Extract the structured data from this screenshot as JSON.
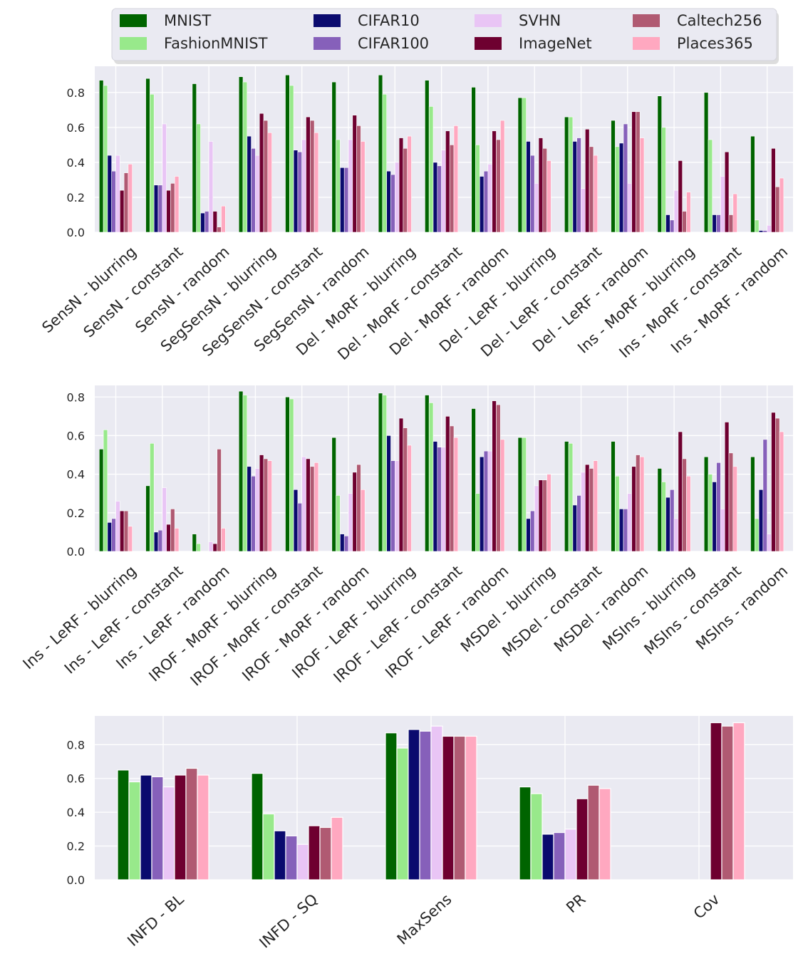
{
  "series": [
    {
      "name": "MNIST",
      "color": "#006400"
    },
    {
      "name": "FashionMNIST",
      "color": "#98E98B"
    },
    {
      "name": "CIFAR10",
      "color": "#0A0A6E"
    },
    {
      "name": "CIFAR100",
      "color": "#8660BA"
    },
    {
      "name": "SVHN",
      "color": "#E9C5F5"
    },
    {
      "name": "ImageNet",
      "color": "#6E0030"
    },
    {
      "name": "Caltech256",
      "color": "#B05A72"
    },
    {
      "name": "Places365",
      "color": "#FFA8C0"
    }
  ],
  "chart_data": [
    {
      "type": "bar",
      "title": "",
      "xlabel": "",
      "ylabel": "",
      "ylim": [
        0,
        0.95
      ],
      "yticks": [
        0.0,
        0.2,
        0.4,
        0.6,
        0.8
      ],
      "categories": [
        "SensN - blurring",
        "SensN - constant",
        "SensN - random",
        "SegSensN - blurring",
        "SegSensN - constant",
        "SegSensN - random",
        "Del - MoRF - blurring",
        "Del - MoRF - constant",
        "Del - MoRF - random",
        "Del - LeRF - blurring",
        "Del - LeRF - constant",
        "Del - LeRF - random",
        "Ins - MoRF - blurring",
        "Ins - MoRF - constant",
        "Ins - MoRF - random"
      ],
      "series": [
        {
          "name": "MNIST",
          "values": [
            0.87,
            0.88,
            0.85,
            0.89,
            0.9,
            0.86,
            0.9,
            0.87,
            0.83,
            0.77,
            0.66,
            0.64,
            0.78,
            0.8,
            0.55
          ]
        },
        {
          "name": "FashionMNIST",
          "values": [
            0.84,
            0.79,
            0.62,
            0.86,
            0.84,
            0.53,
            0.79,
            0.72,
            0.5,
            0.77,
            0.66,
            0.49,
            0.6,
            0.53,
            0.07
          ]
        },
        {
          "name": "CIFAR10",
          "values": [
            0.44,
            0.27,
            0.11,
            0.55,
            0.47,
            0.37,
            0.35,
            0.4,
            0.32,
            0.52,
            0.52,
            0.51,
            0.1,
            0.1,
            0.01
          ]
        },
        {
          "name": "CIFAR100",
          "values": [
            0.35,
            0.27,
            0.12,
            0.48,
            0.46,
            0.37,
            0.33,
            0.38,
            0.35,
            0.44,
            0.54,
            0.62,
            0.07,
            0.1,
            0.01
          ]
        },
        {
          "name": "SVHN",
          "values": [
            0.44,
            0.62,
            0.52,
            0.44,
            0.53,
            0.53,
            0.4,
            0.47,
            0.39,
            0.28,
            0.25,
            0.28,
            0.24,
            0.32,
            0.04
          ]
        },
        {
          "name": "ImageNet",
          "values": [
            0.24,
            0.24,
            0.12,
            0.68,
            0.66,
            0.67,
            0.54,
            0.58,
            0.58,
            0.54,
            0.59,
            0.69,
            0.41,
            0.46,
            0.48
          ]
        },
        {
          "name": "Caltech256",
          "values": [
            0.34,
            0.28,
            0.03,
            0.64,
            0.64,
            0.61,
            0.48,
            0.5,
            0.53,
            0.48,
            0.49,
            0.69,
            0.12,
            0.1,
            0.26
          ]
        },
        {
          "name": "Places365",
          "values": [
            0.39,
            0.32,
            0.15,
            0.57,
            0.57,
            0.52,
            0.55,
            0.61,
            0.64,
            0.41,
            0.44,
            0.54,
            0.23,
            0.22,
            0.31
          ]
        }
      ]
    },
    {
      "type": "bar",
      "title": "",
      "xlabel": "",
      "ylabel": "",
      "ylim": [
        0,
        0.86
      ],
      "yticks": [
        0.0,
        0.2,
        0.4,
        0.6,
        0.8
      ],
      "categories": [
        "Ins - LeRF - blurring",
        "Ins - LeRF - constant",
        "Ins - LeRF - random",
        "IROF - MoRF - blurring",
        "IROF - MoRF - constant",
        "IROF - MoRF - random",
        "IROF - LeRF - blurring",
        "IROF - LeRF - constant",
        "IROF - LeRF - random",
        "MSDel - blurring",
        "MSDel - constant",
        "MSDel - random",
        "MSIns - blurring",
        "MSIns - constant",
        "MSIns - random"
      ],
      "series": [
        {
          "name": "MNIST",
          "values": [
            0.53,
            0.34,
            0.09,
            0.83,
            0.8,
            0.59,
            0.82,
            0.81,
            0.74,
            0.59,
            0.57,
            0.57,
            0.43,
            0.49,
            0.49
          ]
        },
        {
          "name": "FashionMNIST",
          "values": [
            0.63,
            0.56,
            0.04,
            0.81,
            0.79,
            0.29,
            0.81,
            0.77,
            0.3,
            0.59,
            0.56,
            0.39,
            0.36,
            0.4,
            0.17
          ]
        },
        {
          "name": "CIFAR10",
          "values": [
            0.15,
            0.1,
            0.0,
            0.44,
            0.32,
            0.09,
            0.6,
            0.57,
            0.49,
            0.17,
            0.24,
            0.22,
            0.28,
            0.36,
            0.32
          ]
        },
        {
          "name": "CIFAR100",
          "values": [
            0.17,
            0.11,
            0.0,
            0.39,
            0.25,
            0.08,
            0.47,
            0.54,
            0.52,
            0.21,
            0.29,
            0.22,
            0.32,
            0.46,
            0.58
          ]
        },
        {
          "name": "SVHN",
          "values": [
            0.26,
            0.33,
            0.05,
            0.43,
            0.49,
            0.3,
            0.47,
            0.54,
            0.52,
            0.34,
            0.41,
            0.3,
            0.17,
            0.22,
            0.09
          ]
        },
        {
          "name": "ImageNet",
          "values": [
            0.21,
            0.14,
            0.04,
            0.5,
            0.48,
            0.41,
            0.69,
            0.7,
            0.78,
            0.37,
            0.45,
            0.44,
            0.62,
            0.67,
            0.72
          ]
        },
        {
          "name": "Caltech256",
          "values": [
            0.21,
            0.22,
            0.53,
            0.48,
            0.44,
            0.45,
            0.64,
            0.65,
            0.76,
            0.37,
            0.43,
            0.5,
            0.48,
            0.51,
            0.69
          ]
        },
        {
          "name": "Places365",
          "values": [
            0.13,
            0.12,
            0.12,
            0.47,
            0.46,
            0.32,
            0.55,
            0.59,
            0.58,
            0.4,
            0.47,
            0.49,
            0.39,
            0.44,
            0.62
          ]
        }
      ]
    },
    {
      "type": "bar",
      "title": "",
      "xlabel": "",
      "ylabel": "",
      "ylim": [
        0,
        0.97
      ],
      "yticks": [
        0.0,
        0.2,
        0.4,
        0.6,
        0.8
      ],
      "categories": [
        "INFD - BL",
        "INFD - SQ",
        "MaxSens",
        "PR",
        "Cov"
      ],
      "series": [
        {
          "name": "MNIST",
          "values": [
            0.65,
            0.63,
            0.87,
            0.55,
            null
          ]
        },
        {
          "name": "FashionMNIST",
          "values": [
            0.58,
            0.39,
            0.78,
            0.51,
            null
          ]
        },
        {
          "name": "CIFAR10",
          "values": [
            0.62,
            0.29,
            0.89,
            0.27,
            null
          ]
        },
        {
          "name": "CIFAR100",
          "values": [
            0.61,
            0.26,
            0.88,
            0.28,
            null
          ]
        },
        {
          "name": "SVHN",
          "values": [
            0.55,
            0.21,
            0.91,
            0.3,
            null
          ]
        },
        {
          "name": "ImageNet",
          "values": [
            0.62,
            0.32,
            0.85,
            0.48,
            0.93
          ]
        },
        {
          "name": "Caltech256",
          "values": [
            0.66,
            0.31,
            0.85,
            0.56,
            0.91
          ]
        },
        {
          "name": "Places365",
          "values": [
            0.62,
            0.37,
            0.85,
            0.54,
            0.93
          ]
        }
      ]
    }
  ]
}
